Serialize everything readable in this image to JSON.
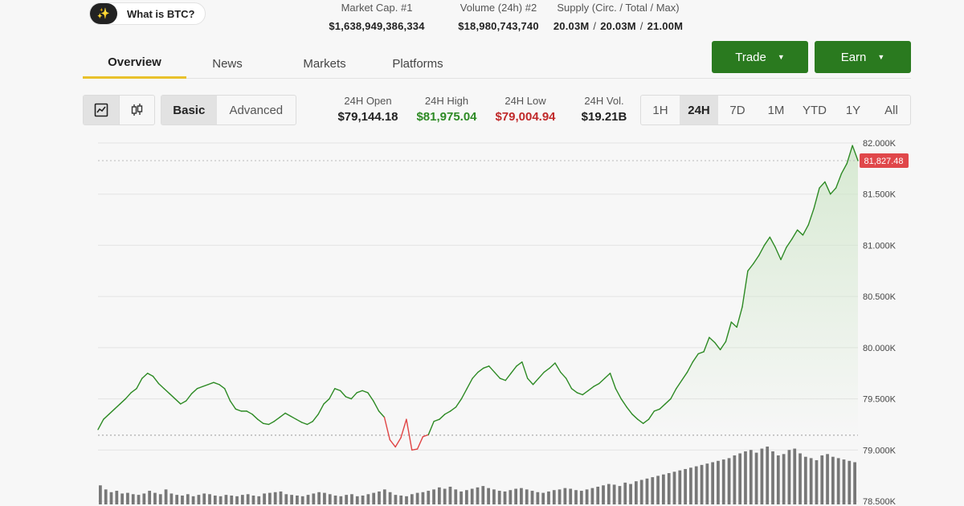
{
  "info_pill": {
    "label": "What is BTC?"
  },
  "stats": [
    {
      "label": "Market Cap. #1",
      "value": "$1,638,949,386,334"
    },
    {
      "label": "Volume (24h) #2",
      "value": "$18,980,743,740"
    }
  ],
  "supply": {
    "label": "Supply (Circ. / Total / Max)",
    "circ": "20.03M",
    "total": "20.03M",
    "max": "21.00M",
    "separator": "/"
  },
  "tabs": [
    "Overview",
    "News",
    "Markets",
    "Platforms"
  ],
  "active_tab": "Overview",
  "actions": {
    "trade": "Trade",
    "earn": "Earn"
  },
  "chart_modes": {
    "basic": "Basic",
    "advanced": "Advanced",
    "active": "Basic"
  },
  "chart_types": [
    "line-chart-icon",
    "candlestick-icon"
  ],
  "market_stats": [
    {
      "label": "24H Open",
      "value": "$79,144.18",
      "tone": "neutral"
    },
    {
      "label": "24H High",
      "value": "$81,975.04",
      "tone": "up"
    },
    {
      "label": "24H Low",
      "value": "$79,004.94",
      "tone": "down"
    },
    {
      "label": "24H Vol.",
      "value": "$19.21B",
      "tone": "neutral"
    }
  ],
  "ranges": [
    "1H",
    "24H",
    "7D",
    "1M",
    "YTD",
    "1Y",
    "All"
  ],
  "active_range": "24H",
  "colors": {
    "brand_green": "#2a7a1f",
    "price_line": "#2d8a24",
    "below_open": "#e04444",
    "active_tab_underline": "#e9c12b",
    "current_price_tag": "#e0474a"
  },
  "chart_data": {
    "type": "line",
    "price_axis": {
      "ticks": [
        "82.000K",
        "81.500K",
        "81.000K",
        "80.500K",
        "80.000K",
        "79.500K",
        "79.000K",
        "78.500K"
      ],
      "ylim": [
        78500,
        82000
      ],
      "position": "right"
    },
    "current_price_label": "81,827.48",
    "current_price": 81827.48,
    "open_price": 79144.18,
    "grid": true,
    "series": [
      {
        "values": [
          79200,
          79300,
          79350,
          79400,
          79450,
          79500,
          79560,
          79600,
          79700,
          79750,
          79720,
          79650,
          79600,
          79550,
          79500,
          79450,
          79480,
          79550,
          79600,
          79620,
          79640,
          79660,
          79640,
          79600,
          79480,
          79400,
          79380,
          79380,
          79350,
          79300,
          79260,
          79250,
          79280,
          79320,
          79360,
          79330,
          79300,
          79270,
          79250,
          79280,
          79350,
          79450,
          79500,
          79600,
          79580,
          79520,
          79500,
          79560,
          79580,
          79560,
          79480,
          79380,
          79320,
          79100,
          79030,
          79120,
          79300,
          79000,
          79010,
          79130,
          79150,
          79280,
          79300,
          79350,
          79380,
          79420,
          79500,
          79600,
          79700,
          79760,
          79800,
          79820,
          79760,
          79700,
          79680,
          79750,
          79820,
          79860,
          79700,
          79640,
          79700,
          79760,
          79800,
          79850,
          79760,
          79700,
          79600,
          79560,
          79540,
          79580,
          79620,
          79650,
          79700,
          79750,
          79600,
          79500,
          79420,
          79350,
          79300,
          79260,
          79300,
          79380,
          79400,
          79450,
          79500,
          79600,
          79680,
          79760,
          79860,
          79940,
          79960,
          80100,
          80050,
          79980,
          80060,
          80250,
          80200,
          80400,
          80750,
          80820,
          80900,
          81000,
          81080,
          80980,
          80860,
          80980,
          81060,
          81150,
          81100,
          81200,
          81360,
          81560,
          81620,
          81500,
          81560,
          81700,
          81800,
          81975,
          81827
        ]
      }
    ],
    "volume_bars": [
      28,
      22,
      18,
      20,
      16,
      17,
      15,
      14,
      16,
      20,
      17,
      15,
      22,
      16,
      14,
      13,
      15,
      12,
      14,
      16,
      15,
      13,
      12,
      14,
      13,
      12,
      14,
      15,
      13,
      12,
      16,
      17,
      18,
      19,
      15,
      14,
      13,
      12,
      14,
      16,
      18,
      17,
      15,
      13,
      12,
      14,
      15,
      12,
      13,
      15,
      17,
      19,
      22,
      18,
      14,
      13,
      12,
      15,
      17,
      18,
      20,
      22,
      25,
      23,
      26,
      22,
      19,
      21,
      23,
      25,
      27,
      24,
      22,
      20,
      19,
      21,
      23,
      24,
      22,
      20,
      18,
      17,
      19,
      21,
      22,
      24,
      23,
      21,
      20,
      22,
      24,
      26,
      28,
      30,
      29,
      27,
      32,
      30,
      34,
      36,
      38,
      40,
      42,
      44,
      46,
      48,
      50,
      52,
      54,
      56,
      58,
      60,
      62,
      64,
      66,
      68,
      72,
      75,
      78,
      80,
      76,
      82,
      85,
      78,
      72,
      74,
      80,
      82,
      75,
      70,
      68,
      65,
      72,
      74,
      70,
      68,
      66,
      64,
      62
    ]
  }
}
